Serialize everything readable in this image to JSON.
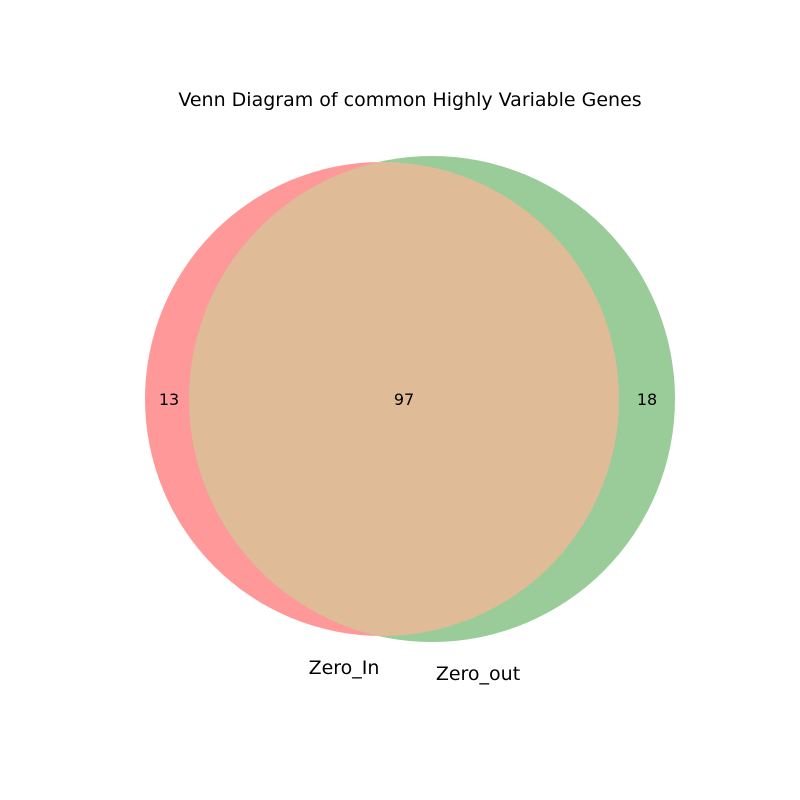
{
  "chart_data": {
    "type": "venn",
    "title": "Venn Diagram of common Highly Variable Genes",
    "sets": [
      {
        "name": "Zero_In",
        "only": "13",
        "color": "#ff9999"
      },
      {
        "name": "Zero_out",
        "only": "18",
        "color": "#99cc99"
      }
    ],
    "intersection": "97",
    "colors": {
      "left_only": "#ff9999",
      "right_only": "#99cc99",
      "overlap": "#e0bb97"
    }
  }
}
